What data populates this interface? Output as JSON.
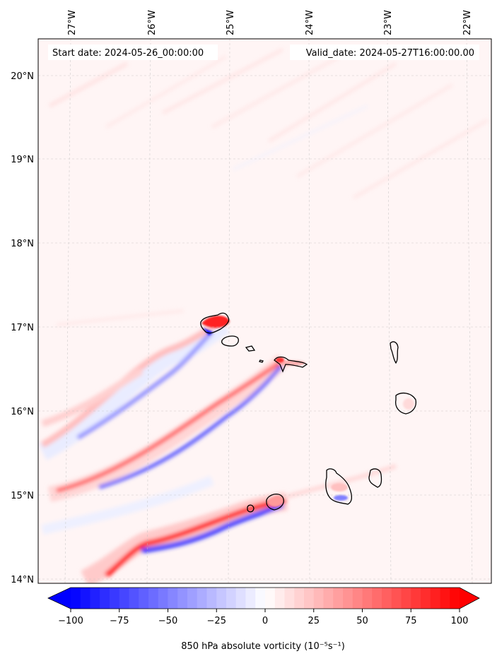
{
  "header": {
    "start_date": "Start date: 2024-05-26_00:00:00",
    "valid_date": "Valid_date: 2024-05-27T16:00:00.00"
  },
  "map": {
    "lon_labels": [
      "27°W",
      "26°W",
      "25°W",
      "24°W",
      "23°W",
      "22°W"
    ],
    "lat_labels": [
      "20°N",
      "19°N",
      "18°N",
      "17°N",
      "16°N",
      "15°N",
      "14°N"
    ],
    "gridlines": true
  },
  "colorbar": {
    "ticks": [
      "−100",
      "−75",
      "−50",
      "−25",
      "0",
      "25",
      "50",
      "75",
      "100"
    ],
    "min": -100,
    "max": 100,
    "colors": {
      "negative": "#0000ff",
      "zero": "#ffffff",
      "positive": "#ff0000"
    },
    "label": "850 hPa absolute vorticity (10⁻⁵s⁻¹)"
  }
}
